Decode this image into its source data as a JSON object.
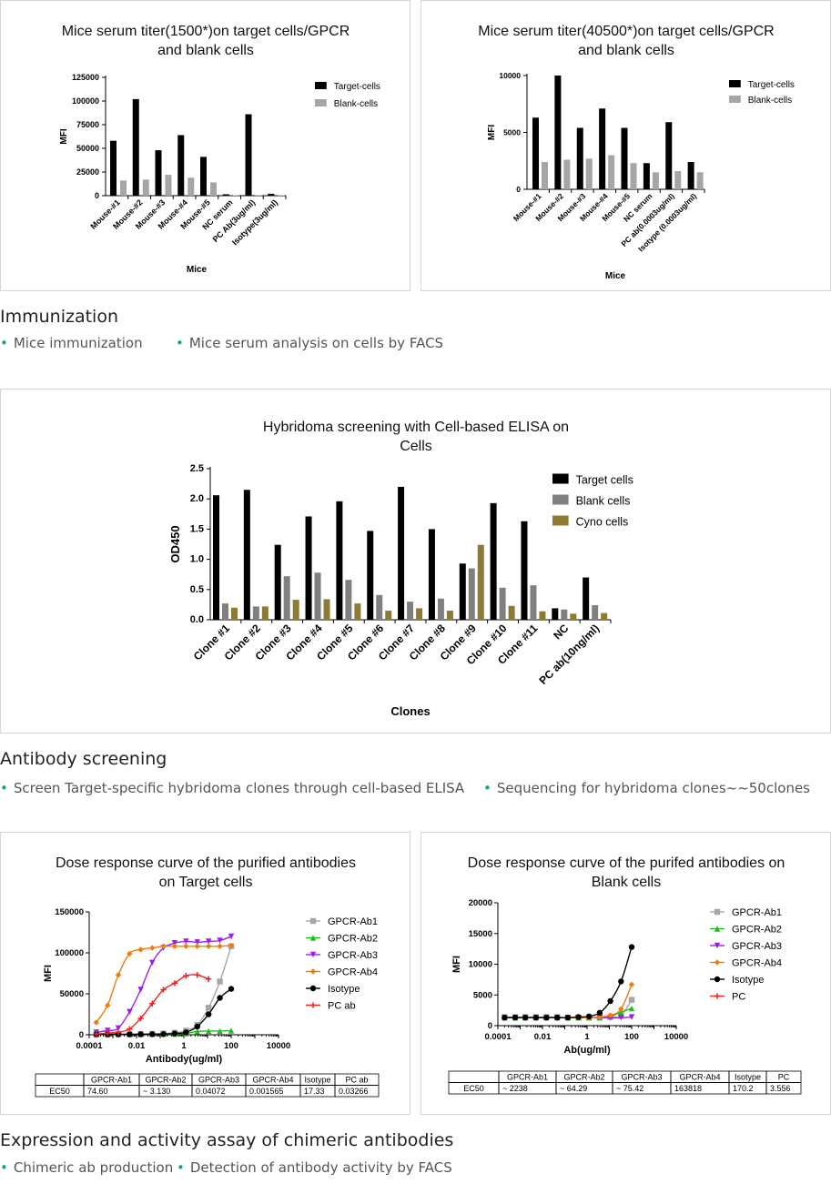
{
  "sections": [
    {
      "title": "Immunization",
      "bullets": [
        "Mice immunization",
        "Mice serum analysis on cells by FACS"
      ]
    },
    {
      "title": "Antibody screening",
      "bullets": [
        "Screen Target-specific hybridoma clones through cell-based ELISA",
        "Sequencing for hybridoma clones~~50clones"
      ]
    },
    {
      "title": "Expression and activity assay of chimeric antibodies",
      "bullets": [
        "Chimeric ab production",
        "Detection of antibody activity by FACS"
      ]
    }
  ],
  "colors": {
    "accent_dot": "#18a37f",
    "border": "#d6d6d6"
  },
  "chart_data": [
    {
      "type": "bar",
      "title": "Mice serum titer(1500*)on target cells/GPCR and blank cells",
      "xlabel": "Mice",
      "ylabel": "MFI",
      "categories": [
        "Mouse-#1",
        "Mouse-#2",
        "Mouse-#3",
        "Mouse-#4",
        "Mouse-#5",
        "NC serum",
        "PC Ab(3ug/ml)",
        "Isotype(3ug/ml)"
      ],
      "series": [
        {
          "name": "Target-cells",
          "color": "#000000",
          "values": [
            58000,
            102000,
            48000,
            64000,
            41000,
            1500,
            86000,
            2000
          ]
        },
        {
          "name": "Blank-cells",
          "color": "#a6a6a6",
          "values": [
            16000,
            17000,
            22000,
            19000,
            14000,
            500,
            500,
            500
          ]
        }
      ],
      "ylim": [
        0,
        125000
      ],
      "yticks": [
        "0",
        "25000",
        "50000",
        "75000",
        "100000",
        "125000"
      ],
      "legend": "top-right"
    },
    {
      "type": "bar",
      "title": "Mice serum titer(40500*)on target cells/GPCR and blank cells",
      "xlabel": "Mice",
      "ylabel": "MFI",
      "categories": [
        "Mouse-#1",
        "Mouse-#2",
        "Mouse-#3",
        "Mouse-#4",
        "Mouse-#5",
        "NC serum",
        "PC ab(0.0003ug/ml)",
        "Isotype (0.0003ug/ml)"
      ],
      "series": [
        {
          "name": "Target-cells",
          "color": "#000000",
          "values": [
            6300,
            10000,
            5400,
            7100,
            5400,
            2300,
            5900,
            2400
          ]
        },
        {
          "name": "Blank-cells",
          "color": "#a6a6a6",
          "values": [
            2400,
            2600,
            2700,
            3000,
            2300,
            1500,
            1600,
            1500
          ]
        }
      ],
      "ylim": [
        0,
        10000
      ],
      "yticks": [
        "0",
        "5000",
        "10000"
      ],
      "legend": "top-right"
    },
    {
      "type": "bar",
      "title": "Hybridoma screening with Cell-based ELISA on Cells",
      "xlabel": "Clones",
      "ylabel": "OD450",
      "categories": [
        "Clone #1",
        "Clone #2",
        "Clone #3",
        "Clone #4",
        "Clone #5",
        "Clone #6",
        "Clone #7",
        "Clone #8",
        "Clone #9",
        "Clone #10",
        "Clone #11",
        "NC",
        "PC ab(10ng/ml)"
      ],
      "series": [
        {
          "name": "Target cells",
          "color": "#000000",
          "values": [
            2.06,
            2.15,
            1.24,
            1.71,
            1.96,
            1.47,
            2.2,
            1.5,
            0.93,
            1.93,
            1.63,
            0.19,
            0.7
          ]
        },
        {
          "name": "Blank cells",
          "color": "#808080",
          "values": [
            0.27,
            0.22,
            0.72,
            0.78,
            0.66,
            0.41,
            0.3,
            0.35,
            0.85,
            0.53,
            0.57,
            0.17,
            0.24
          ]
        },
        {
          "name": "Cyno cells",
          "color": "#8c7a35",
          "values": [
            0.2,
            0.22,
            0.33,
            0.34,
            0.27,
            0.15,
            0.19,
            0.15,
            1.24,
            0.23,
            0.14,
            0.1,
            0.11
          ]
        }
      ],
      "ylim": [
        0,
        2.5
      ],
      "yticks": [
        "0.0",
        "0.5",
        "1.0",
        "1.5",
        "2.0",
        "2.5"
      ],
      "legend": "top-right"
    },
    {
      "type": "line",
      "title": "Dose response curve of the purified antibodies on Target cells",
      "xlabel": "Antibody(ug/ml)",
      "ylabel": "MFI",
      "xscale": "log",
      "xlim": [
        0.0001,
        10000
      ],
      "ylim": [
        0,
        150000
      ],
      "xticks": [
        "0.0001",
        "0.01",
        "1",
        "100",
        "10000"
      ],
      "yticks": [
        "0",
        "50000",
        "100000",
        "150000"
      ],
      "series": [
        {
          "name": "GPCR-Ab1",
          "color": "#a6a6a6",
          "marker": "square",
          "x": [
            0.0002,
            0.0006,
            0.0017,
            0.0051,
            0.015,
            0.046,
            0.137,
            0.41,
            1.23,
            3.7,
            11.1,
            33.3,
            100
          ],
          "y": [
            800,
            800,
            900,
            900,
            1000,
            1100,
            1500,
            2500,
            5000,
            12000,
            33000,
            65000,
            108000
          ]
        },
        {
          "name": "GPCR-Ab2",
          "color": "#22bb22",
          "marker": "triangle-up",
          "x": [
            0.0002,
            0.0006,
            0.0017,
            0.0051,
            0.015,
            0.046,
            0.137,
            0.41,
            1.23,
            3.7,
            11.1,
            33.3,
            100
          ],
          "y": [
            500,
            500,
            600,
            600,
            700,
            800,
            900,
            1000,
            1800,
            4000,
            4500,
            4500,
            5000
          ]
        },
        {
          "name": "GPCR-Ab3",
          "color": "#9b1fe8",
          "marker": "triangle-down",
          "x": [
            0.0002,
            0.0006,
            0.0017,
            0.0051,
            0.015,
            0.046,
            0.137,
            0.41,
            1.23,
            3.7,
            11.1,
            33.3,
            100
          ],
          "y": [
            3000,
            5000,
            8000,
            28000,
            55000,
            88000,
            106000,
            112000,
            114000,
            113000,
            114000,
            115000,
            120000
          ]
        },
        {
          "name": "GPCR-Ab4",
          "color": "#f07c10",
          "marker": "diamond",
          "x": [
            0.0002,
            0.0006,
            0.0017,
            0.0051,
            0.015,
            0.046,
            0.137,
            0.41,
            1.23,
            3.7,
            11.1,
            33.3,
            100
          ],
          "y": [
            15000,
            36000,
            73000,
            99000,
            104000,
            106000,
            108000,
            108000,
            108000,
            108000,
            108000,
            108000,
            109000
          ]
        },
        {
          "name": "Isotype",
          "color": "#000000",
          "marker": "circle",
          "x": [
            0.0002,
            0.0006,
            0.0017,
            0.0051,
            0.015,
            0.046,
            0.137,
            0.41,
            1.23,
            3.7,
            11.1,
            33.3,
            100
          ],
          "y": [
            500,
            500,
            500,
            500,
            600,
            700,
            900,
            1500,
            3000,
            10000,
            25000,
            45000,
            56000
          ]
        },
        {
          "name": "PC ab",
          "color": "#ee2222",
          "marker": "plus",
          "x": [
            0.0002,
            0.0006,
            0.0017,
            0.0051,
            0.015,
            0.046,
            0.137,
            0.41,
            1.23,
            3.7,
            11.1
          ],
          "y": [
            1000,
            2000,
            3000,
            7000,
            20000,
            38000,
            55000,
            63000,
            72000,
            73000,
            68000
          ]
        }
      ],
      "table": {
        "columns": [
          "",
          "GPCR-Ab1",
          "GPCR-Ab2",
          "GPCR-Ab3",
          "GPCR-Ab4",
          "Isotype",
          "PC ab"
        ],
        "rows": [
          [
            "EC50",
            "74.60",
            "~ 3.130",
            "0.04072",
            "0.001565",
            "17.33",
            "0.03266"
          ]
        ]
      },
      "legend": "right"
    },
    {
      "type": "line",
      "title": "Dose response curve of the purifed antibodies on Blank cells",
      "xlabel": "Ab(ug/ml)",
      "ylabel": "MFI",
      "xscale": "log",
      "xlim": [
        0.0001,
        10000
      ],
      "ylim": [
        0,
        20000
      ],
      "xticks": [
        "0.0001",
        "0.01",
        "1",
        "100",
        "10000"
      ],
      "yticks": [
        "0",
        "5000",
        "10000",
        "15000",
        "20000"
      ],
      "series": [
        {
          "name": "GPCR-Ab1",
          "color": "#a6a6a6",
          "marker": "square",
          "x": [
            0.0002,
            0.0006,
            0.0017,
            0.0051,
            0.015,
            0.046,
            0.137,
            0.41,
            1.23,
            3.7,
            11.1,
            33.3,
            100
          ],
          "y": [
            1400,
            1400,
            1400,
            1400,
            1400,
            1400,
            1300,
            1300,
            1300,
            1300,
            1400,
            1600,
            4200
          ]
        },
        {
          "name": "GPCR-Ab2",
          "color": "#22bb22",
          "marker": "triangle-up",
          "x": [
            0.0002,
            0.0006,
            0.0017,
            0.0051,
            0.015,
            0.046,
            0.137,
            0.41,
            1.23,
            3.7,
            11.1,
            33.3,
            100
          ],
          "y": [
            1300,
            1300,
            1300,
            1300,
            1300,
            1300,
            1300,
            1300,
            1300,
            1300,
            1500,
            2200,
            2800
          ]
        },
        {
          "name": "GPCR-Ab3",
          "color": "#9b1fe8",
          "marker": "triangle-down",
          "x": [
            0.0002,
            0.0006,
            0.0017,
            0.0051,
            0.015,
            0.046,
            0.137,
            0.41,
            1.23,
            3.7,
            11.1,
            33.3,
            100
          ],
          "y": [
            1300,
            1300,
            1300,
            1300,
            1300,
            1300,
            1300,
            1300,
            1300,
            1300,
            1300,
            1300,
            1400
          ]
        },
        {
          "name": "GPCR-Ab4",
          "color": "#f07c10",
          "marker": "diamond",
          "x": [
            0.0002,
            0.0006,
            0.0017,
            0.0051,
            0.015,
            0.046,
            0.137,
            0.41,
            1.23,
            3.7,
            11.1,
            33.3,
            100
          ],
          "y": [
            1300,
            1300,
            1300,
            1300,
            1300,
            1300,
            1300,
            1300,
            1300,
            1400,
            1700,
            2700,
            6700
          ]
        },
        {
          "name": "Isotype",
          "color": "#000000",
          "marker": "circle",
          "x": [
            0.0002,
            0.0006,
            0.0017,
            0.0051,
            0.015,
            0.046,
            0.137,
            0.41,
            1.23,
            3.7,
            11.1,
            33.3,
            100
          ],
          "y": [
            1300,
            1300,
            1300,
            1300,
            1300,
            1300,
            1300,
            1400,
            1500,
            2100,
            4000,
            7200,
            12800
          ]
        },
        {
          "name": "PC",
          "color": "#ee2222",
          "marker": "plus",
          "x": [],
          "y": []
        }
      ],
      "table": {
        "columns": [
          "",
          "GPCR-Ab1",
          "GPCR-Ab2",
          "GPCR-Ab3",
          "GPCR-Ab4",
          "Isotype",
          "PC"
        ],
        "rows": [
          [
            "EC50",
            "~ 2238",
            "~ 64.29",
            "~ 75.42",
            "163818",
            "170.2",
            "3.556"
          ]
        ]
      },
      "legend": "right"
    }
  ]
}
